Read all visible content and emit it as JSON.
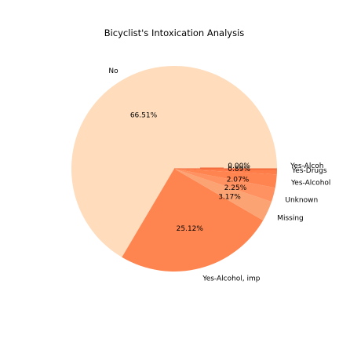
{
  "chart_data": {
    "type": "pie",
    "title": "Bicyclist's Intoxication Analysis",
    "categories": [
      "No",
      "Yes-Alcohol, impairment suspected",
      "Missing",
      "Unknown",
      "Yes-Alcohol",
      "Yes-Drugs",
      "Yes-Alcohol and drugs"
    ],
    "values": [
      66.51,
      25.12,
      3.17,
      2.25,
      2.07,
      0.89,
      0.0
    ],
    "value_labels": [
      "66.51%",
      "25.12%",
      "3.17%",
      "2.25%",
      "2.07%",
      "0.89%",
      "0.00%"
    ],
    "slice_labels": [
      "No",
      "Yes-Alcohol, imp",
      "Missing",
      "Unknown",
      "Yes-Alcohol",
      "Yes-Drugs",
      "Yes-Alcoh"
    ],
    "colors": [
      "#fedcbc",
      "#ff8550",
      "#fca374",
      "#ff9260",
      "#ff8450",
      "#ff7d48",
      "#f36b3e"
    ],
    "start_angle_deg": 0,
    "direction": "counterclockwise",
    "legend": "none"
  }
}
